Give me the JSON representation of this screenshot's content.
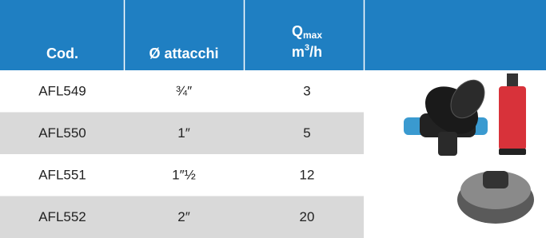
{
  "table": {
    "header": {
      "code": "Cod.",
      "connections": "Ø attacchi",
      "flow": {
        "symbol": "Q",
        "subscript": "max",
        "unit": [
          "m",
          "3",
          "/h"
        ]
      }
    },
    "rows": [
      [
        "AFL549",
        "¾″",
        3
      ],
      [
        "AFL550",
        "1″",
        5
      ],
      [
        "AFL551",
        "1″½",
        12
      ],
      [
        "AFL552",
        "2″",
        20
      ]
    ]
  }
}
